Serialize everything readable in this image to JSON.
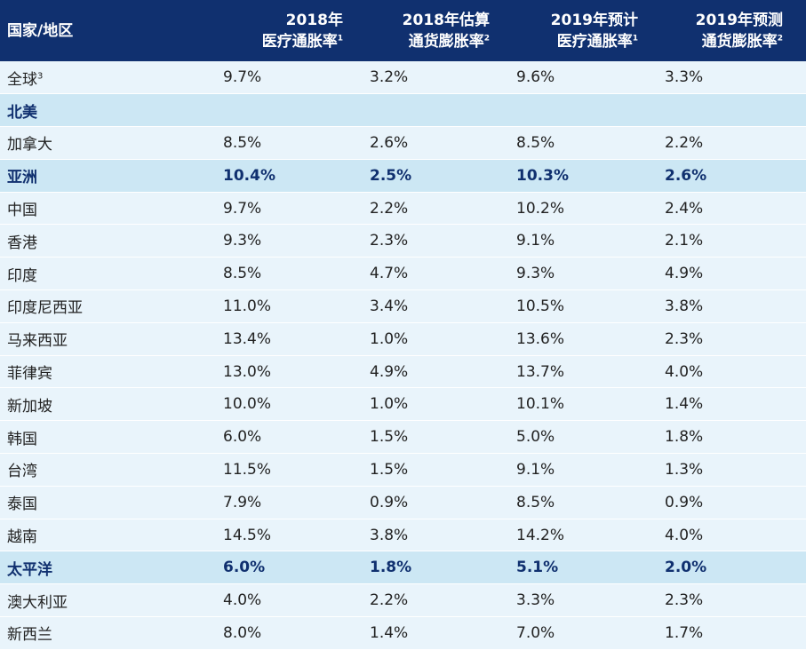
{
  "colors": {
    "header_bg": "#10306f",
    "row_bg": "#e9f4fb",
    "group_row_bg": "#cce7f4",
    "group_text": "#10306f"
  },
  "header": {
    "region": "国家/地区",
    "columns": [
      {
        "line1": "2018年",
        "line2": "医疗通胀率",
        "note": "1"
      },
      {
        "line1": "2018年估算",
        "line2": "通货膨胀率",
        "note": "2"
      },
      {
        "line1": "2019年预计",
        "line2": "医疗通胀率",
        "note": "1"
      },
      {
        "line1": "2019年预测",
        "line2": "通货膨胀率",
        "note": "2"
      }
    ]
  },
  "rows": [
    {
      "region": "全球",
      "note": "3",
      "group": false,
      "values": [
        "9.7%",
        "3.2%",
        "9.6%",
        "3.3%"
      ]
    },
    {
      "region": "北美",
      "group": true,
      "values": [
        "",
        "",
        "",
        ""
      ]
    },
    {
      "region": "加拿大",
      "group": false,
      "values": [
        "8.5%",
        "2.6%",
        "8.5%",
        "2.2%"
      ]
    },
    {
      "region": "亚洲",
      "group": true,
      "values": [
        "10.4%",
        "2.5%",
        "10.3%",
        "2.6%"
      ]
    },
    {
      "region": "中国",
      "group": false,
      "values": [
        "9.7%",
        "2.2%",
        "10.2%",
        "2.4%"
      ]
    },
    {
      "region": "香港",
      "group": false,
      "values": [
        "9.3%",
        "2.3%",
        "9.1%",
        "2.1%"
      ]
    },
    {
      "region": "印度",
      "group": false,
      "values": [
        "8.5%",
        "4.7%",
        "9.3%",
        "4.9%"
      ]
    },
    {
      "region": "印度尼西亚",
      "group": false,
      "values": [
        "11.0%",
        "3.4%",
        "10.5%",
        "3.8%"
      ]
    },
    {
      "region": "马来西亚",
      "group": false,
      "values": [
        "13.4%",
        "1.0%",
        "13.6%",
        "2.3%"
      ]
    },
    {
      "region": "菲律宾",
      "group": false,
      "values": [
        "13.0%",
        "4.9%",
        "13.7%",
        "4.0%"
      ]
    },
    {
      "region": "新加坡",
      "group": false,
      "values": [
        "10.0%",
        "1.0%",
        "10.1%",
        "1.4%"
      ]
    },
    {
      "region": "韩国",
      "group": false,
      "values": [
        "6.0%",
        "1.5%",
        "5.0%",
        "1.8%"
      ]
    },
    {
      "region": "台湾",
      "group": false,
      "values": [
        "11.5%",
        "1.5%",
        "9.1%",
        "1.3%"
      ]
    },
    {
      "region": "泰国",
      "group": false,
      "values": [
        "7.9%",
        "0.9%",
        "8.5%",
        "0.9%"
      ]
    },
    {
      "region": "越南",
      "group": false,
      "values": [
        "14.5%",
        "3.8%",
        "14.2%",
        "4.0%"
      ]
    },
    {
      "region": "太平洋",
      "group": true,
      "values": [
        "6.0%",
        "1.8%",
        "5.1%",
        "2.0%"
      ]
    },
    {
      "region": "澳大利亚",
      "group": false,
      "values": [
        "4.0%",
        "2.2%",
        "3.3%",
        "2.3%"
      ]
    },
    {
      "region": "新西兰",
      "group": false,
      "values": [
        "8.0%",
        "1.4%",
        "7.0%",
        "1.7%"
      ]
    }
  ]
}
